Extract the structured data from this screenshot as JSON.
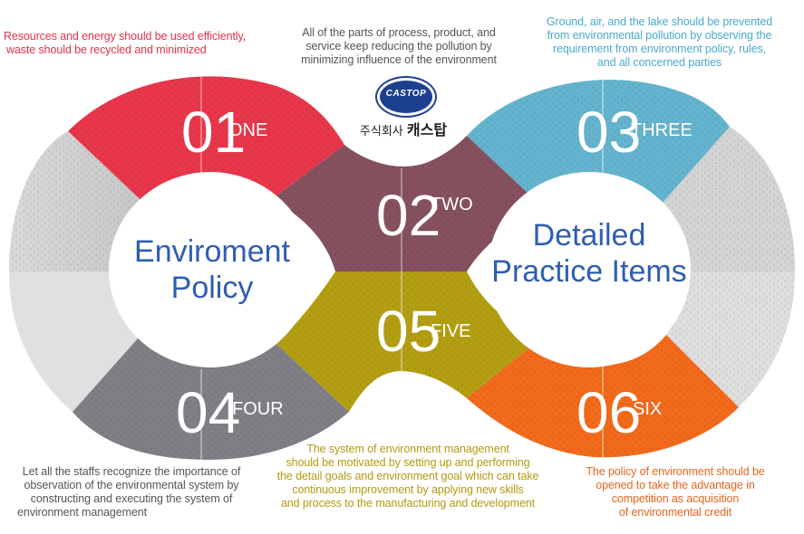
{
  "center": {
    "left_title_line1": "Enviroment",
    "left_title_line2": "Policy",
    "right_title_line1": "Detailed",
    "right_title_line2": "Practice Items"
  },
  "logo": {
    "brand": "CASTOP",
    "company_prefix": "주식회사",
    "company_name": "캐스탑"
  },
  "segments": [
    {
      "num": "01",
      "word": "ONE",
      "color": "#e8364a",
      "text_color": "#e5304a",
      "text": [
        "Resources and energy should be used efficiently,",
        "waste should be recycled and minimized"
      ]
    },
    {
      "num": "02",
      "word": "TWO",
      "color": "#86515f",
      "text_color": "#555555",
      "text": [
        "All of the parts of process, product, and",
        "service keep reducing the pollution by",
        "minimizing influence of the environment"
      ]
    },
    {
      "num": "03",
      "word": "THREE",
      "color": "#64b4cf",
      "text_color": "#4aa9cc",
      "text": [
        "Ground, air, and the lake should be prevented",
        "from environmental pollution by observing the",
        "requirement from environment policy, rules,",
        "and all concerned parties"
      ]
    },
    {
      "num": "04",
      "word": "FOUR",
      "color": "#807f86",
      "text_color": "#555555",
      "text": [
        "Let all the staffs recognize the importance of",
        "observation of the environmental system by",
        "constructing and executing the system of",
        "environment management"
      ]
    },
    {
      "num": "05",
      "word": "FIVE",
      "color": "#b39e12",
      "text_color": "#b39a10",
      "text": [
        "The system of environment management",
        "should be motivated by setting up and performing",
        "the detail goals and environment goal which can take",
        "continuous improvement by applying new skills",
        "and process to the manufacturing and development"
      ]
    },
    {
      "num": "06",
      "word": "SIX",
      "color": "#f26a1b",
      "text_color": "#e8641e",
      "text": [
        "The policy of environment should be",
        "opened to take the advantage in",
        "competition as acquisition",
        "of environmental credit"
      ]
    }
  ],
  "colors": {
    "grey": "#cfcfcf",
    "grey_light": "#e2e2e2",
    "title_blue": "#2f5db3"
  }
}
